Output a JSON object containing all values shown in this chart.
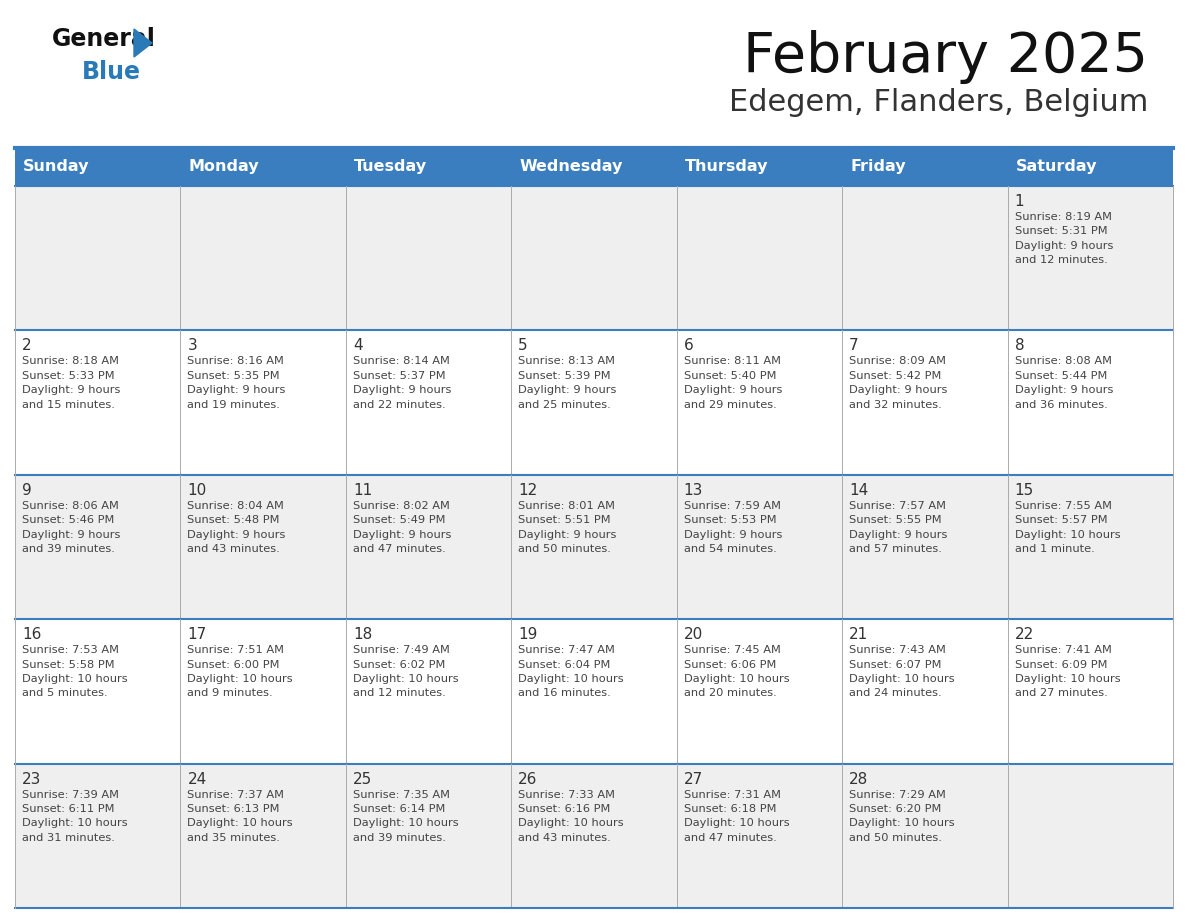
{
  "title": "February 2025",
  "subtitle": "Edegem, Flanders, Belgium",
  "days_of_week": [
    "Sunday",
    "Monday",
    "Tuesday",
    "Wednesday",
    "Thursday",
    "Friday",
    "Saturday"
  ],
  "header_bg": "#3a7ebf",
  "header_text": "#ffffff",
  "row_bg_odd": "#efefef",
  "row_bg_even": "#ffffff",
  "cell_border_color": "#3a7ebf",
  "cell_divider_color": "#aaaaaa",
  "day_number_color": "#333333",
  "cell_text_color": "#444444",
  "title_color": "#111111",
  "subtitle_color": "#333333",
  "logo_general_color": "#111111",
  "logo_blue_color": "#2a7ab8",
  "separator_line_color": "#3a7ebf",
  "weeks": [
    [
      {
        "day": "",
        "info": ""
      },
      {
        "day": "",
        "info": ""
      },
      {
        "day": "",
        "info": ""
      },
      {
        "day": "",
        "info": ""
      },
      {
        "day": "",
        "info": ""
      },
      {
        "day": "",
        "info": ""
      },
      {
        "day": "1",
        "info": "Sunrise: 8:19 AM\nSunset: 5:31 PM\nDaylight: 9 hours\nand 12 minutes."
      }
    ],
    [
      {
        "day": "2",
        "info": "Sunrise: 8:18 AM\nSunset: 5:33 PM\nDaylight: 9 hours\nand 15 minutes."
      },
      {
        "day": "3",
        "info": "Sunrise: 8:16 AM\nSunset: 5:35 PM\nDaylight: 9 hours\nand 19 minutes."
      },
      {
        "day": "4",
        "info": "Sunrise: 8:14 AM\nSunset: 5:37 PM\nDaylight: 9 hours\nand 22 minutes."
      },
      {
        "day": "5",
        "info": "Sunrise: 8:13 AM\nSunset: 5:39 PM\nDaylight: 9 hours\nand 25 minutes."
      },
      {
        "day": "6",
        "info": "Sunrise: 8:11 AM\nSunset: 5:40 PM\nDaylight: 9 hours\nand 29 minutes."
      },
      {
        "day": "7",
        "info": "Sunrise: 8:09 AM\nSunset: 5:42 PM\nDaylight: 9 hours\nand 32 minutes."
      },
      {
        "day": "8",
        "info": "Sunrise: 8:08 AM\nSunset: 5:44 PM\nDaylight: 9 hours\nand 36 minutes."
      }
    ],
    [
      {
        "day": "9",
        "info": "Sunrise: 8:06 AM\nSunset: 5:46 PM\nDaylight: 9 hours\nand 39 minutes."
      },
      {
        "day": "10",
        "info": "Sunrise: 8:04 AM\nSunset: 5:48 PM\nDaylight: 9 hours\nand 43 minutes."
      },
      {
        "day": "11",
        "info": "Sunrise: 8:02 AM\nSunset: 5:49 PM\nDaylight: 9 hours\nand 47 minutes."
      },
      {
        "day": "12",
        "info": "Sunrise: 8:01 AM\nSunset: 5:51 PM\nDaylight: 9 hours\nand 50 minutes."
      },
      {
        "day": "13",
        "info": "Sunrise: 7:59 AM\nSunset: 5:53 PM\nDaylight: 9 hours\nand 54 minutes."
      },
      {
        "day": "14",
        "info": "Sunrise: 7:57 AM\nSunset: 5:55 PM\nDaylight: 9 hours\nand 57 minutes."
      },
      {
        "day": "15",
        "info": "Sunrise: 7:55 AM\nSunset: 5:57 PM\nDaylight: 10 hours\nand 1 minute."
      }
    ],
    [
      {
        "day": "16",
        "info": "Sunrise: 7:53 AM\nSunset: 5:58 PM\nDaylight: 10 hours\nand 5 minutes."
      },
      {
        "day": "17",
        "info": "Sunrise: 7:51 AM\nSunset: 6:00 PM\nDaylight: 10 hours\nand 9 minutes."
      },
      {
        "day": "18",
        "info": "Sunrise: 7:49 AM\nSunset: 6:02 PM\nDaylight: 10 hours\nand 12 minutes."
      },
      {
        "day": "19",
        "info": "Sunrise: 7:47 AM\nSunset: 6:04 PM\nDaylight: 10 hours\nand 16 minutes."
      },
      {
        "day": "20",
        "info": "Sunrise: 7:45 AM\nSunset: 6:06 PM\nDaylight: 10 hours\nand 20 minutes."
      },
      {
        "day": "21",
        "info": "Sunrise: 7:43 AM\nSunset: 6:07 PM\nDaylight: 10 hours\nand 24 minutes."
      },
      {
        "day": "22",
        "info": "Sunrise: 7:41 AM\nSunset: 6:09 PM\nDaylight: 10 hours\nand 27 minutes."
      }
    ],
    [
      {
        "day": "23",
        "info": "Sunrise: 7:39 AM\nSunset: 6:11 PM\nDaylight: 10 hours\nand 31 minutes."
      },
      {
        "day": "24",
        "info": "Sunrise: 7:37 AM\nSunset: 6:13 PM\nDaylight: 10 hours\nand 35 minutes."
      },
      {
        "day": "25",
        "info": "Sunrise: 7:35 AM\nSunset: 6:14 PM\nDaylight: 10 hours\nand 39 minutes."
      },
      {
        "day": "26",
        "info": "Sunrise: 7:33 AM\nSunset: 6:16 PM\nDaylight: 10 hours\nand 43 minutes."
      },
      {
        "day": "27",
        "info": "Sunrise: 7:31 AM\nSunset: 6:18 PM\nDaylight: 10 hours\nand 47 minutes."
      },
      {
        "day": "28",
        "info": "Sunrise: 7:29 AM\nSunset: 6:20 PM\nDaylight: 10 hours\nand 50 minutes."
      },
      {
        "day": "",
        "info": ""
      }
    ]
  ]
}
